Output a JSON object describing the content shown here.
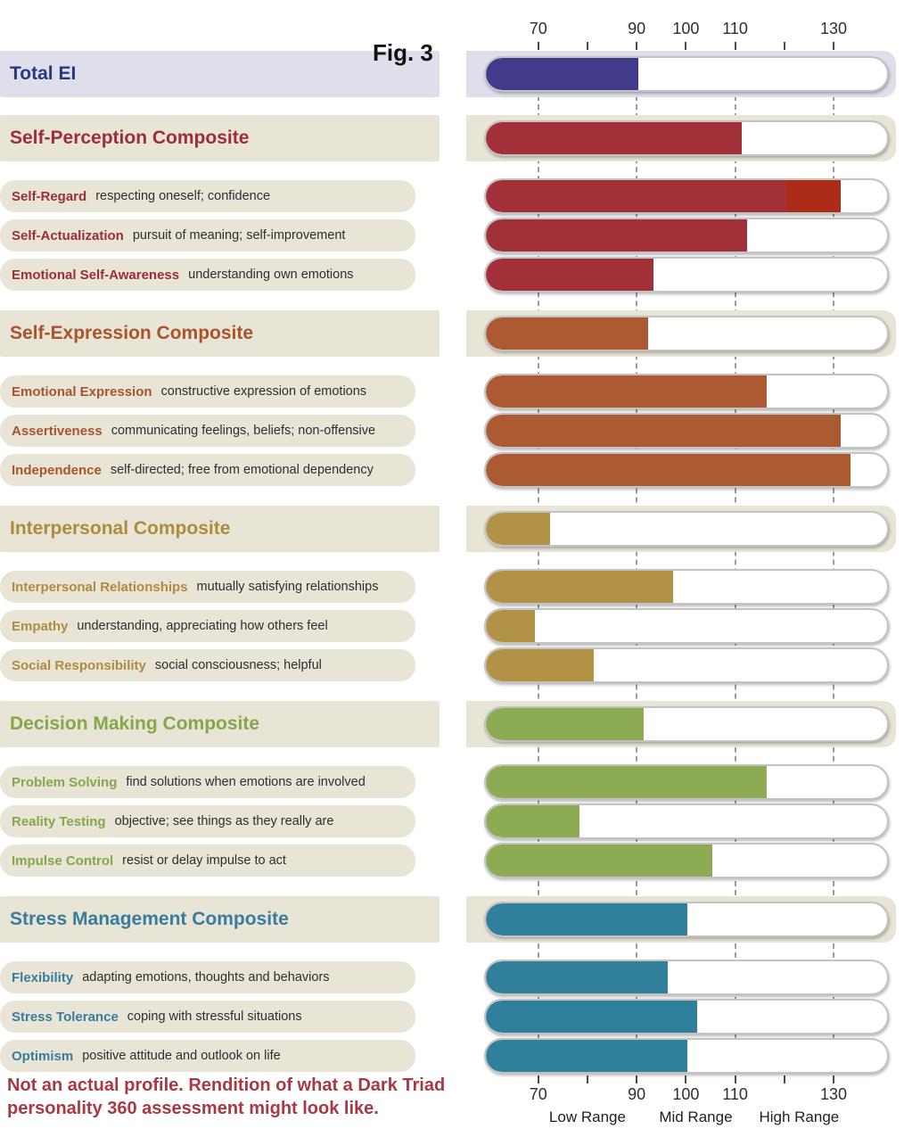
{
  "figure_label": "Fig. 3",
  "footnote": {
    "line1": "Not an actual profile. Rendition of what a Dark Triad",
    "line2": "personality 360 assessment might look like."
  },
  "colors": {
    "page_background": "#ffffff",
    "total_row_background": "#dfdfeb",
    "composite_row_background": "#e9e5d6",
    "subscale_pill_background": "#e9e5d6",
    "track_fill_background": "#ffffff",
    "track_border": "#c3c3c3",
    "gridline": "#9b9ba3",
    "axis_text": "#2e2e2e",
    "description_text": "#2e2e2e",
    "figure_label_text": "#111111",
    "footnote_text": "#a83944"
  },
  "chart_data": {
    "type": "bar",
    "orientation": "horizontal",
    "title": "Fig. 3",
    "axis": {
      "min": 59,
      "max": 140.5,
      "ticks": [
        70,
        80,
        90,
        100,
        110,
        120,
        130
      ],
      "labeled_ticks": [
        70,
        90,
        100,
        110,
        130
      ],
      "gridlines": [
        70,
        90,
        110,
        130
      ],
      "top_axis": true,
      "bottom_axis": true,
      "grid_style": "dashed"
    },
    "range_labels": [
      {
        "label": "Low Range",
        "center": 80
      },
      {
        "label": "Mid Range",
        "center": 102
      },
      {
        "label": "High Range",
        "center": 123
      }
    ],
    "rows": [
      {
        "kind": "total",
        "label": "Total EI",
        "value": 90,
        "bar_color": "#423a8a",
        "label_color": "#27397f",
        "bg": "#dfdfeb"
      },
      {
        "kind": "composite",
        "label": "Self-Perception Composite",
        "value": 111,
        "bar_color": "#a23038",
        "label_color": "#9c2d3a",
        "bg": "#e9e5d6"
      },
      {
        "kind": "subscale",
        "label": "Self-Regard",
        "description": "respecting oneself; confidence",
        "value": 131,
        "bar_color": "#a23038",
        "label_color": "#9c2d3a",
        "segment2": {
          "from": 120,
          "to": 131,
          "color": "#ad2c18"
        }
      },
      {
        "kind": "subscale",
        "label": "Self-Actualization",
        "description": "pursuit of meaning; self-improvement",
        "value": 112,
        "bar_color": "#a23038",
        "label_color": "#9c2d3a"
      },
      {
        "kind": "subscale",
        "label": "Emotional Self-Awareness",
        "description": "understanding own emotions",
        "value": 93,
        "bar_color": "#a23038",
        "label_color": "#9c2d3a"
      },
      {
        "kind": "composite",
        "label": "Self-Expression Composite",
        "value": 92,
        "bar_color": "#ab5a32",
        "label_color": "#a8552d",
        "bg": "#e9e5d6"
      },
      {
        "kind": "subscale",
        "label": "Emotional Expression",
        "description": "constructive expression of emotions",
        "value": 116,
        "bar_color": "#ab5a32",
        "label_color": "#a8552d"
      },
      {
        "kind": "subscale",
        "label": "Assertiveness",
        "description": "communicating feelings, beliefs; non-offensive",
        "value": 131,
        "bar_color": "#ab5a32",
        "label_color": "#a8552d"
      },
      {
        "kind": "subscale",
        "label": "Independence",
        "description": "self-directed; free from emotional dependency",
        "value": 133,
        "bar_color": "#ab5a32",
        "label_color": "#a8552d"
      },
      {
        "kind": "composite",
        "label": "Interpersonal Composite",
        "value": 72,
        "bar_color": "#b29247",
        "label_color": "#ae8c3d",
        "bg": "#e9e5d6"
      },
      {
        "kind": "subscale",
        "label": "Interpersonal Relationships",
        "description": "mutually satisfying relationships",
        "value": 97,
        "bar_color": "#b29247",
        "label_color": "#ae8c3d"
      },
      {
        "kind": "subscale",
        "label": "Empathy",
        "description": "understanding, appreciating how others feel",
        "value": 69,
        "bar_color": "#b29247",
        "label_color": "#ae8c3d"
      },
      {
        "kind": "subscale",
        "label": "Social Responsibility",
        "description": "social consciousness; helpful",
        "value": 81,
        "bar_color": "#b29247",
        "label_color": "#ae8c3d"
      },
      {
        "kind": "composite",
        "label": "Decision Making Composite",
        "value": 91,
        "bar_color": "#8cab52",
        "label_color": "#84a74a",
        "bg": "#e9e5d6"
      },
      {
        "kind": "subscale",
        "label": "Problem Solving",
        "description": "find solutions when emotions are involved",
        "value": 116,
        "bar_color": "#8cab52",
        "label_color": "#84a74a"
      },
      {
        "kind": "subscale",
        "label": "Reality Testing",
        "description": "objective; see things as they really are",
        "value": 78,
        "bar_color": "#8cab52",
        "label_color": "#84a74a"
      },
      {
        "kind": "subscale",
        "label": "Impulse Control",
        "description": "resist or delay impulse to act",
        "value": 105,
        "bar_color": "#8cab52",
        "label_color": "#84a74a"
      },
      {
        "kind": "composite",
        "label": "Stress Management Composite",
        "value": 100,
        "bar_color": "#31809b",
        "label_color": "#377d9d",
        "bg": "#e9e5d6"
      },
      {
        "kind": "subscale",
        "label": "Flexibility",
        "description": "adapting emotions, thoughts and behaviors",
        "value": 96,
        "bar_color": "#31809b",
        "label_color": "#377d9d"
      },
      {
        "kind": "subscale",
        "label": "Stress Tolerance",
        "description": "coping with stressful situations",
        "value": 102,
        "bar_color": "#31809b",
        "label_color": "#377d9d"
      },
      {
        "kind": "subscale",
        "label": "Optimism",
        "description": "positive attitude and outlook on life",
        "value": 100,
        "bar_color": "#31809b",
        "label_color": "#377d9d"
      }
    ]
  }
}
